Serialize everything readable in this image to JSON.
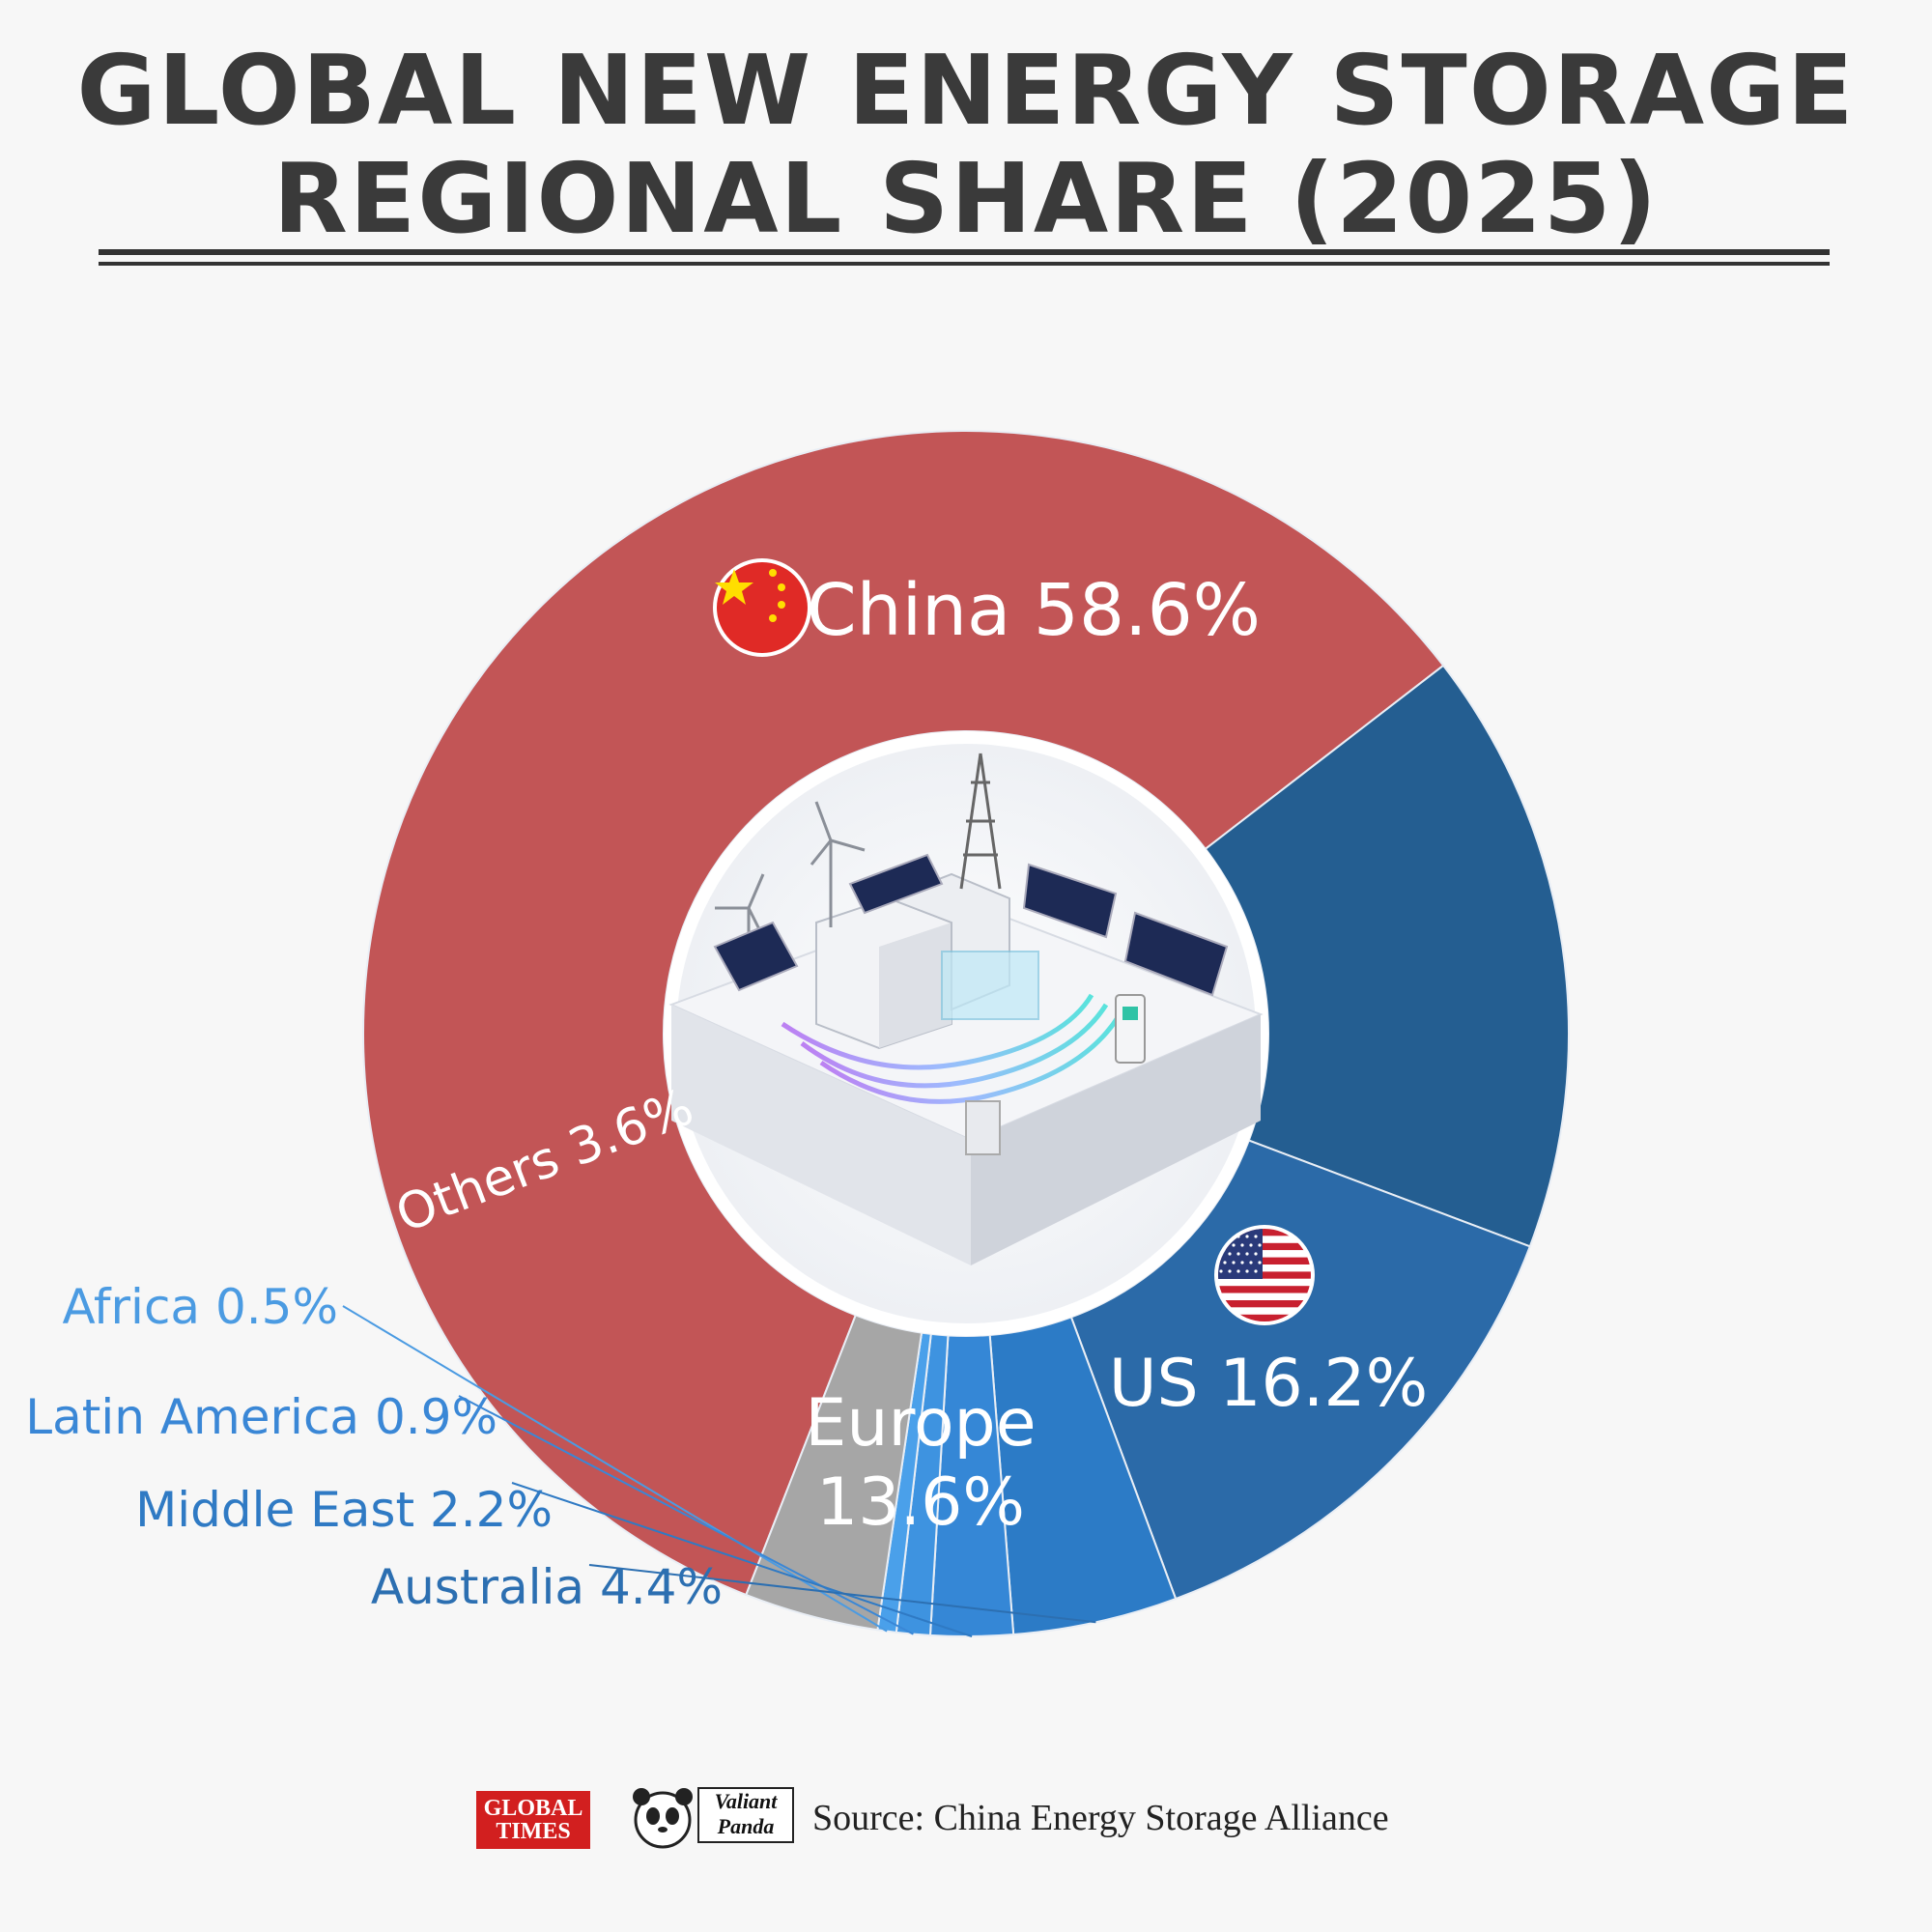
{
  "title": {
    "line1": "GLOBAL NEW ENERGY STORAGE",
    "line2": "REGIONAL SHARE (2025)"
  },
  "chart_data": {
    "type": "pie",
    "title": "GLOBAL NEW ENERGY STORAGE REGIONAL SHARE (2025)",
    "unit": "%",
    "slices": [
      {
        "name": "China",
        "value": 58.6,
        "label": "China 58.6%",
        "color": "#c25556",
        "label_color": "#ffffff"
      },
      {
        "name": "US",
        "value": 16.2,
        "label": "US 16.2%",
        "color": "#245e91",
        "label_color": "#ffffff"
      },
      {
        "name": "Europe",
        "value": 13.6,
        "label": "Europe 13.6%",
        "label_lines": [
          "Europe",
          "13.6%"
        ],
        "color": "#2b6aa8",
        "label_color": "#ffffff"
      },
      {
        "name": "Australia",
        "value": 4.4,
        "label": "Australia 4.4%",
        "color": "#2c7bc6",
        "label_color": "#2c6fb1"
      },
      {
        "name": "Middle East",
        "value": 2.2,
        "label": "Middle East 2.2%",
        "color": "#3587d6",
        "label_color": "#2f7ac4"
      },
      {
        "name": "Latin America",
        "value": 0.9,
        "label": "Latin America 0.9%",
        "color": "#3e93e0",
        "label_color": "#3a87d6"
      },
      {
        "name": "Africa",
        "value": 0.5,
        "label": "Africa 0.5%",
        "color": "#4aa0ea",
        "label_color": "#4b9be2"
      },
      {
        "name": "Others",
        "value": 3.6,
        "label": "Others 3.6%",
        "color": "#a6a6a6",
        "label_color": "#ffffff"
      }
    ]
  },
  "icons": {
    "china": "china-flag-icon",
    "us": "us-flag-icon",
    "center": "energy-storage-station-illustration"
  },
  "footer": {
    "logo1_line1": "GLOBAL",
    "logo1_line2": "TIMES",
    "logo2_line1": "Valiant",
    "logo2_line2": "Panda",
    "source": "Source: China Energy Storage Alliance"
  }
}
